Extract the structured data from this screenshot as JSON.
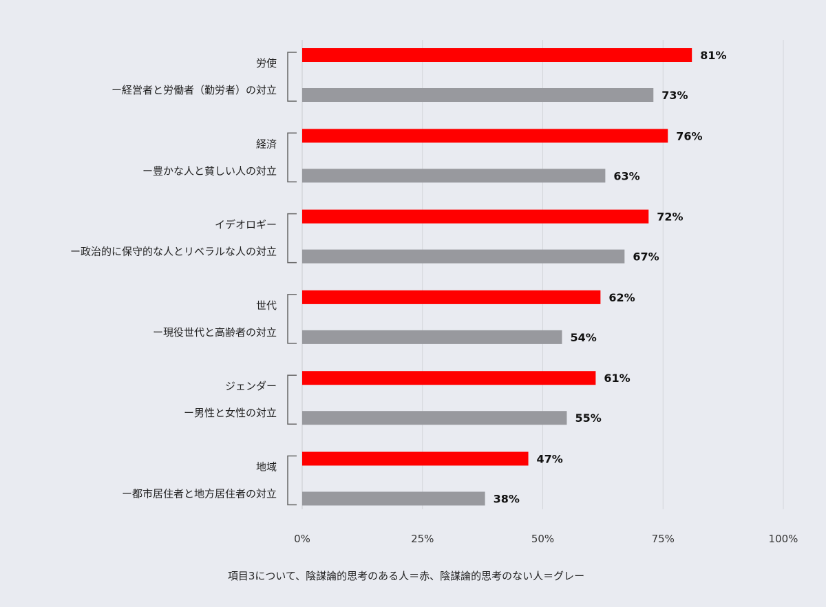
{
  "chart_data": {
    "type": "bar",
    "orientation": "horizontal",
    "categories": [
      {
        "title": "労使",
        "subtitle": "ー経営者と労働者（勤労者）の対立"
      },
      {
        "title": "経済",
        "subtitle": "ー豊かな人と貧しい人の対立"
      },
      {
        "title": "イデオロギー",
        "subtitle": "ー政治的に保守的な人とリベラルな人の対立"
      },
      {
        "title": "世代",
        "subtitle": "ー現役世代と高齢者の対立"
      },
      {
        "title": "ジェンダー",
        "subtitle": "ー男性と女性の対立"
      },
      {
        "title": "地域",
        "subtitle": "ー都市居住者と地方居住者の対立"
      }
    ],
    "series": [
      {
        "color": "#ff0000",
        "values": [
          81,
          76,
          72,
          62,
          61,
          47
        ]
      },
      {
        "color": "#98999e",
        "values": [
          73,
          63,
          67,
          54,
          55,
          38
        ]
      }
    ],
    "data_labels": [
      [
        "81%",
        "76%",
        "72%",
        "62%",
        "61%",
        "47%"
      ],
      [
        "73%",
        "63%",
        "67%",
        "54%",
        "55%",
        "38%"
      ]
    ],
    "xlim": [
      0,
      100
    ],
    "xticks": [
      "0%",
      "25%",
      "50%",
      "75%",
      "100%"
    ],
    "grid": true,
    "caption": "項目3について、陰謀論的思考のある人＝赤、陰謀論的思考のない人＝グレー"
  }
}
